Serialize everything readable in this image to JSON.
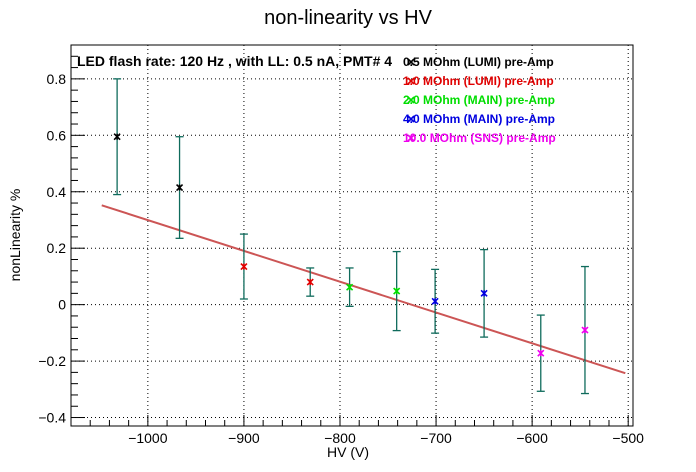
{
  "chart_data": {
    "type": "scatter",
    "title": "non-linearity vs HV",
    "annotation": "LED flash rate: 120 Hz , with LL: 0.5 nA, PMT# 4",
    "xlabel": "HV (V)",
    "ylabel": "nonLinearity %",
    "xlim": [
      -1080,
      -495
    ],
    "ylim": [
      -0.43,
      0.92
    ],
    "xticks": [
      -1000,
      -900,
      -800,
      -700,
      -600,
      -500
    ],
    "xtick_labels": [
      "−1000",
      "−900",
      "−800",
      "−700",
      "−600",
      "−500"
    ],
    "yticks": [
      -0.4,
      -0.2,
      0,
      0.2,
      0.4,
      0.6,
      0.8
    ],
    "ytick_labels": [
      "−0.4",
      "−0.2",
      "0",
      "0.2",
      "0.4",
      "0.6",
      "0.8"
    ],
    "grid": true,
    "legend_position": "top-right",
    "error_bar_color": "#0f6b5c",
    "series": [
      {
        "name": "0.5 MOhm (LUMI) pre-Amp",
        "color": "#000000",
        "points": [
          {
            "x": -1032,
            "y": 0.595,
            "err": 0.205
          },
          {
            "x": -967,
            "y": 0.415,
            "err": 0.18
          }
        ]
      },
      {
        "name": "1.0 MOhm (LUMI) pre-Amp",
        "color": "#e00000",
        "points": [
          {
            "x": -900,
            "y": 0.135,
            "err": 0.115
          },
          {
            "x": -831,
            "y": 0.08,
            "err": 0.05
          }
        ]
      },
      {
        "name": "2.0 MOhm (MAIN) pre-Amp",
        "color": "#00dd00",
        "points": [
          {
            "x": -790,
            "y": 0.062,
            "err": 0.068
          },
          {
            "x": -741,
            "y": 0.048,
            "err": 0.14
          }
        ]
      },
      {
        "name": "4.0 MOhm (MAIN) pre-Amp",
        "color": "#0000e0",
        "points": [
          {
            "x": -701,
            "y": 0.012,
            "err": 0.113
          },
          {
            "x": -650,
            "y": 0.04,
            "err": 0.155
          }
        ]
      },
      {
        "name": "10.0 MOhm (SNS) pre-Amp",
        "color": "#ee00ee",
        "points": [
          {
            "x": -591,
            "y": -0.172,
            "err": 0.135
          },
          {
            "x": -545,
            "y": -0.09,
            "err": 0.225
          }
        ]
      }
    ],
    "fit": {
      "color": "#cc5555",
      "x": [
        -1048,
        -503
      ],
      "y": [
        0.352,
        -0.243
      ]
    }
  }
}
